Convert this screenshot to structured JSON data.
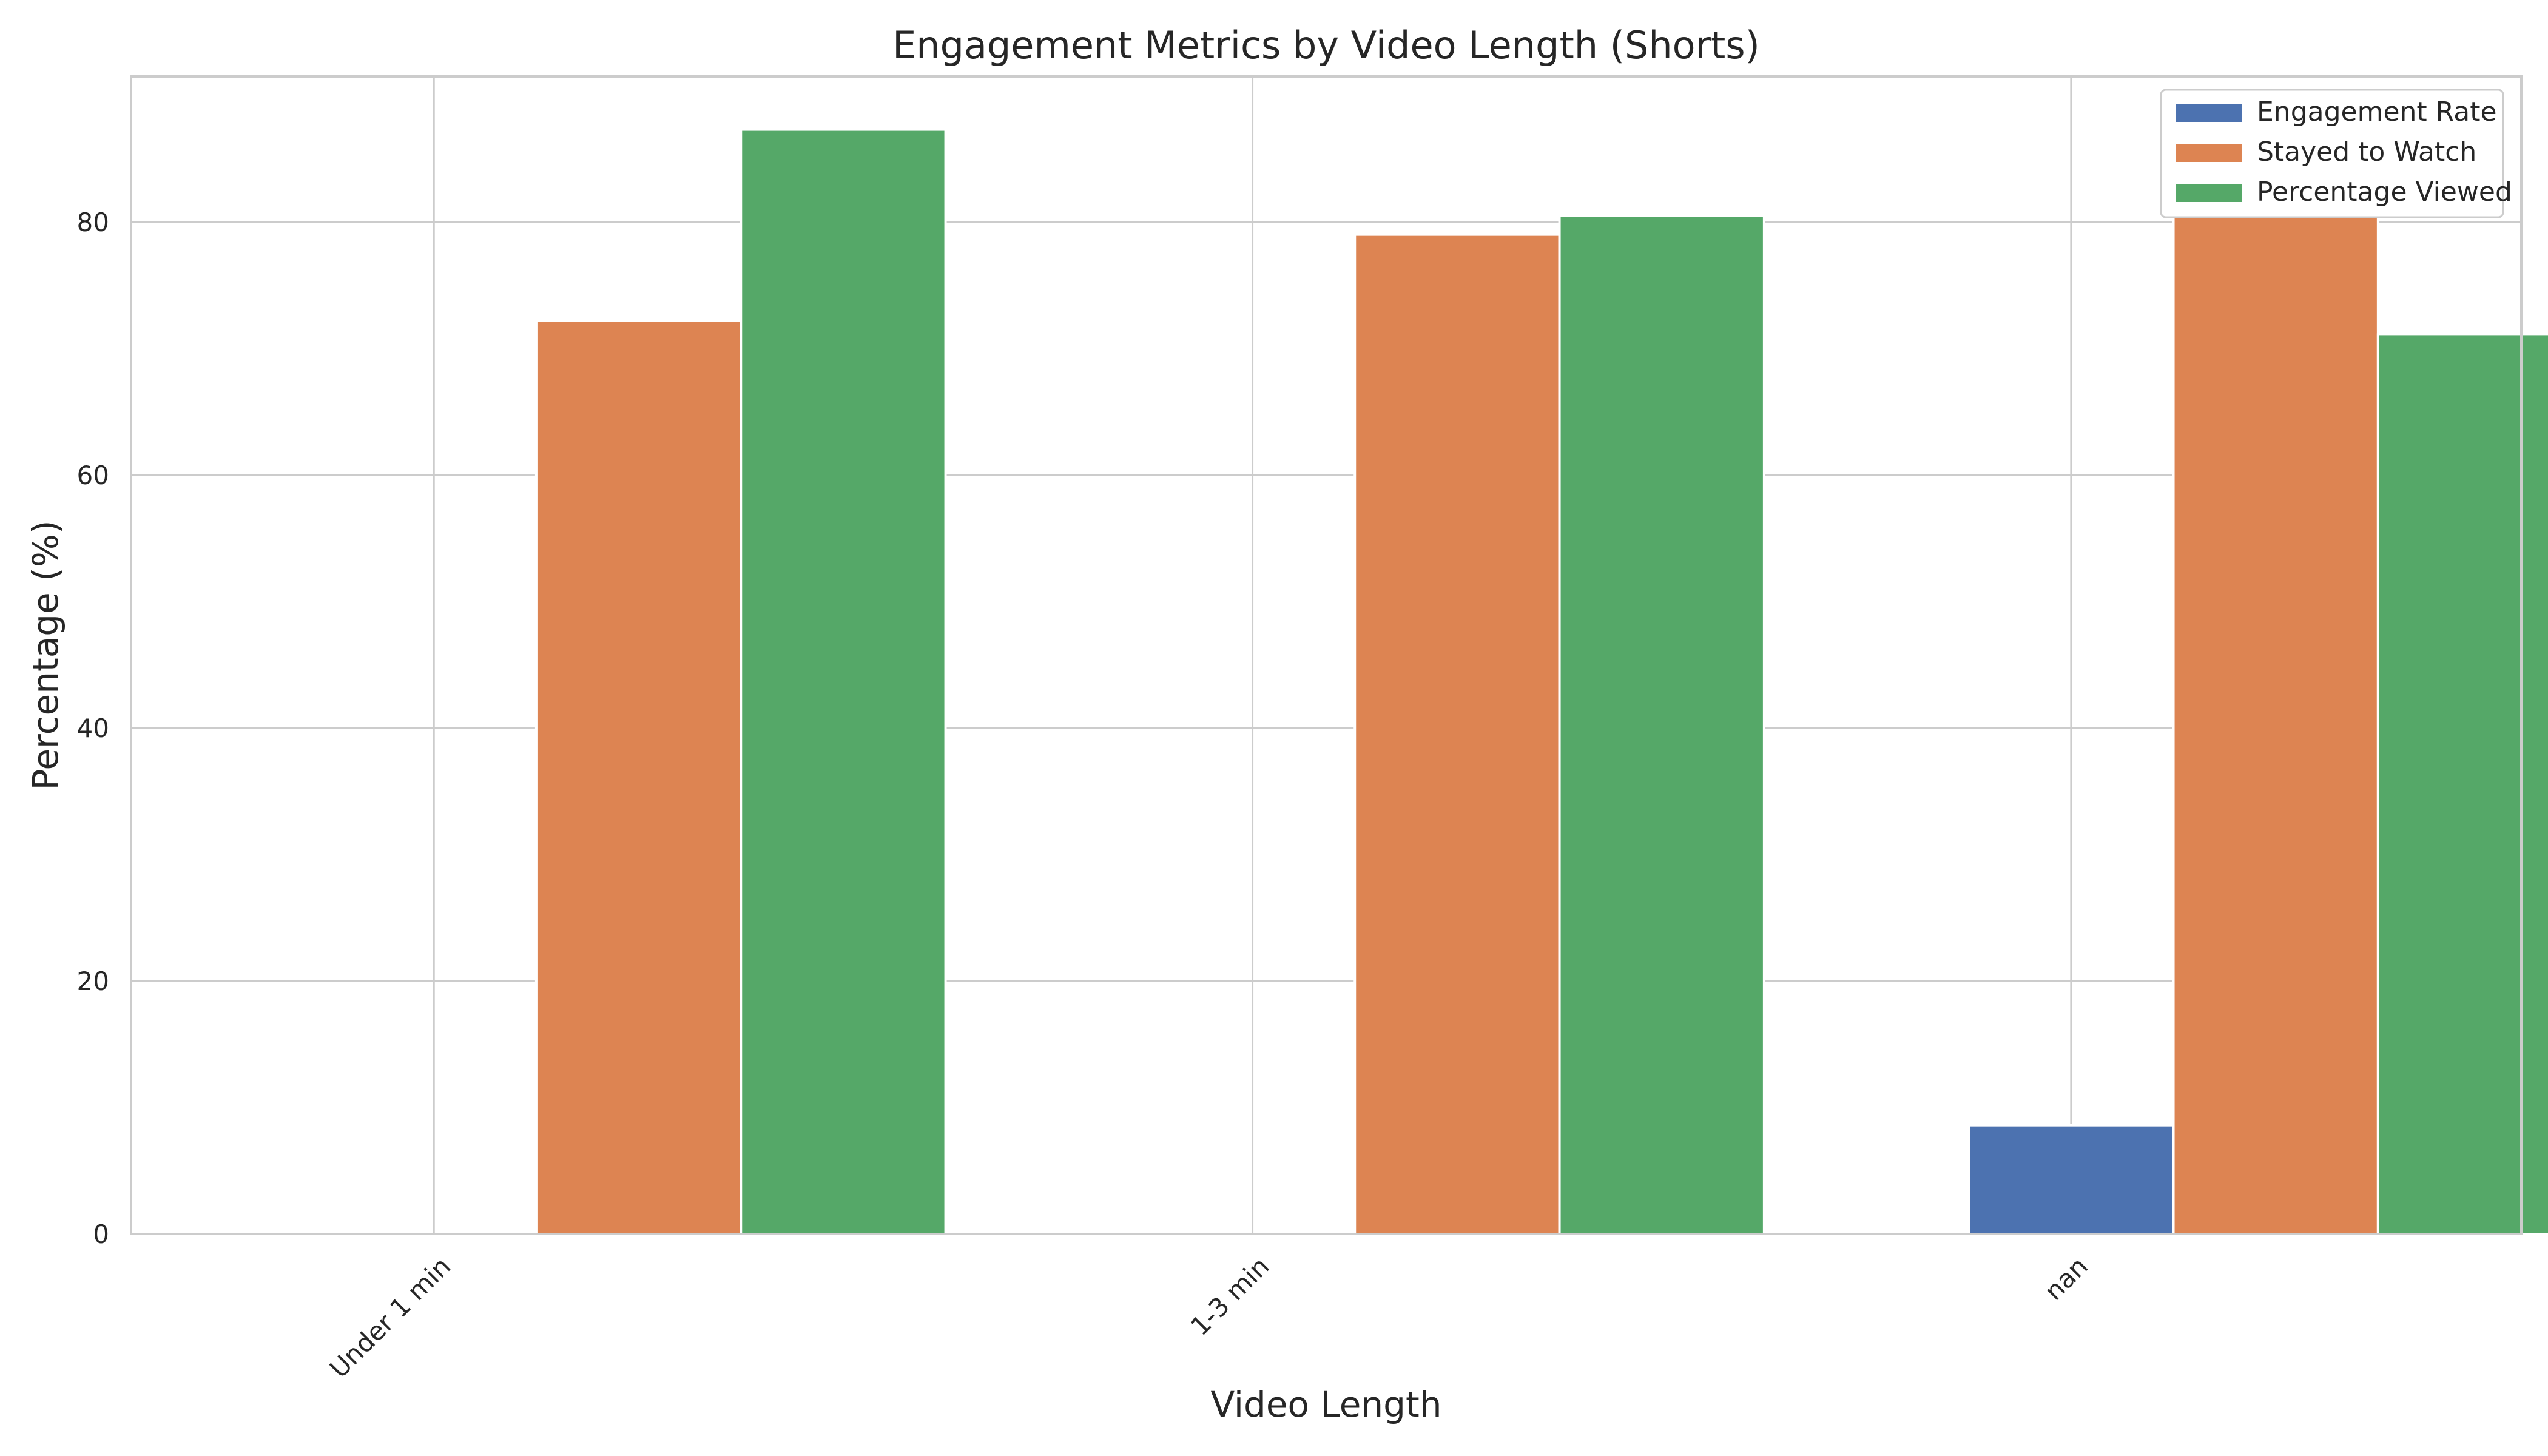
{
  "chart_data": {
    "type": "bar",
    "title": "Engagement Metrics by Video Length (Shorts)",
    "xlabel": "Video Length",
    "ylabel": "Percentage (%)",
    "categories": [
      "Under 1 min",
      "1-3 min",
      "nan"
    ],
    "ylim": [
      0,
      91.5
    ],
    "yticks": [
      0,
      20,
      40,
      60,
      80
    ],
    "grid": true,
    "legend_position": "top-right",
    "series": [
      {
        "name": "Engagement Rate",
        "color": "#4c72b0",
        "values": [
          0,
          0,
          8.6
        ]
      },
      {
        "name": "Stayed to Watch",
        "color": "#dd8452",
        "values": [
          72.2,
          79.0,
          80.5
        ]
      },
      {
        "name": "Percentage Viewed",
        "color": "#55a868",
        "values": [
          87.3,
          80.5,
          71.1
        ]
      }
    ]
  }
}
